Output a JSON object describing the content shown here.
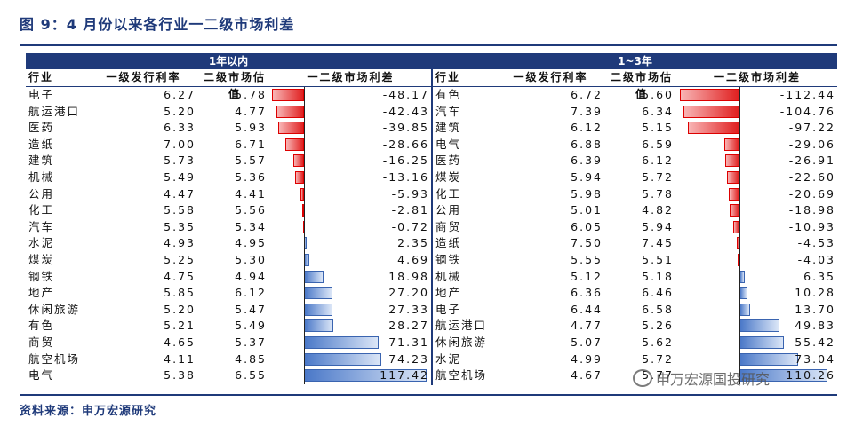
{
  "title": "图 9：4 月份以来各行业一二级市场利差",
  "source": "资料来源：申万宏源研究",
  "watermark": "申万宏源国投研究",
  "columns": {
    "industry": "行业",
    "issue_rate": "一级发行利率",
    "valuation": "二级市场估值",
    "spread": "一二级市场利差"
  },
  "left": {
    "header": "1年以内",
    "rows": [
      {
        "industry": "电子",
        "issue": "6.27",
        "val": "5.78",
        "diff": "-48.17",
        "d": -48.17
      },
      {
        "industry": "航运港口",
        "issue": "5.20",
        "val": "4.77",
        "diff": "-42.43",
        "d": -42.43
      },
      {
        "industry": "医药",
        "issue": "6.33",
        "val": "5.93",
        "diff": "-39.85",
        "d": -39.85
      },
      {
        "industry": "造纸",
        "issue": "7.00",
        "val": "6.71",
        "diff": "-28.66",
        "d": -28.66
      },
      {
        "industry": "建筑",
        "issue": "5.73",
        "val": "5.57",
        "diff": "-16.25",
        "d": -16.25
      },
      {
        "industry": "机械",
        "issue": "5.49",
        "val": "5.36",
        "diff": "-13.16",
        "d": -13.16
      },
      {
        "industry": "公用",
        "issue": "4.47",
        "val": "4.41",
        "diff": "-5.93",
        "d": -5.93
      },
      {
        "industry": "化工",
        "issue": "5.58",
        "val": "5.56",
        "diff": "-2.81",
        "d": -2.81
      },
      {
        "industry": "汽车",
        "issue": "5.35",
        "val": "5.34",
        "diff": "-0.72",
        "d": -0.72
      },
      {
        "industry": "水泥",
        "issue": "4.93",
        "val": "4.95",
        "diff": "2.35",
        "d": 2.35
      },
      {
        "industry": "煤炭",
        "issue": "5.25",
        "val": "5.30",
        "diff": "4.69",
        "d": 4.69
      },
      {
        "industry": "钢铁",
        "issue": "4.75",
        "val": "4.94",
        "diff": "18.98",
        "d": 18.98
      },
      {
        "industry": "地产",
        "issue": "5.85",
        "val": "6.12",
        "diff": "27.20",
        "d": 27.2
      },
      {
        "industry": "休闲旅游",
        "issue": "5.20",
        "val": "5.47",
        "diff": "27.33",
        "d": 27.33
      },
      {
        "industry": "有色",
        "issue": "5.21",
        "val": "5.49",
        "diff": "28.27",
        "d": 28.27
      },
      {
        "industry": "商贸",
        "issue": "4.65",
        "val": "5.37",
        "diff": "71.31",
        "d": 71.31
      },
      {
        "industry": "航空机场",
        "issue": "4.11",
        "val": "4.85",
        "diff": "74.23",
        "d": 74.23
      },
      {
        "industry": "电气",
        "issue": "5.38",
        "val": "6.55",
        "diff": "117.42",
        "d": 117.42
      }
    ]
  },
  "right": {
    "header": "1~3年",
    "rows": [
      {
        "industry": "有色",
        "issue": "6.72",
        "val": "5.60",
        "diff": "-112.44",
        "d": -112.44
      },
      {
        "industry": "汽车",
        "issue": "7.39",
        "val": "6.34",
        "diff": "-104.76",
        "d": -104.76
      },
      {
        "industry": "建筑",
        "issue": "6.12",
        "val": "5.15",
        "diff": "-97.22",
        "d": -97.22
      },
      {
        "industry": "电气",
        "issue": "6.88",
        "val": "6.59",
        "diff": "-29.06",
        "d": -29.06
      },
      {
        "industry": "医药",
        "issue": "6.39",
        "val": "6.12",
        "diff": "-26.91",
        "d": -26.91
      },
      {
        "industry": "煤炭",
        "issue": "5.94",
        "val": "5.72",
        "diff": "-22.60",
        "d": -22.6
      },
      {
        "industry": "化工",
        "issue": "5.98",
        "val": "5.78",
        "diff": "-20.69",
        "d": -20.69
      },
      {
        "industry": "公用",
        "issue": "5.01",
        "val": "4.82",
        "diff": "-18.98",
        "d": -18.98
      },
      {
        "industry": "商贸",
        "issue": "6.05",
        "val": "5.94",
        "diff": "-10.93",
        "d": -10.93
      },
      {
        "industry": "造纸",
        "issue": "7.50",
        "val": "7.45",
        "diff": "-4.53",
        "d": -4.53
      },
      {
        "industry": "钢铁",
        "issue": "5.55",
        "val": "5.51",
        "diff": "-4.03",
        "d": -4.03
      },
      {
        "industry": "机械",
        "issue": "5.12",
        "val": "5.18",
        "diff": "6.35",
        "d": 6.35
      },
      {
        "industry": "地产",
        "issue": "6.36",
        "val": "6.46",
        "diff": "10.28",
        "d": 10.28
      },
      {
        "industry": "电子",
        "issue": "6.44",
        "val": "6.58",
        "diff": "13.70",
        "d": 13.7
      },
      {
        "industry": "航运港口",
        "issue": "4.77",
        "val": "5.26",
        "diff": "49.83",
        "d": 49.83
      },
      {
        "industry": "休闲旅游",
        "issue": "5.07",
        "val": "5.62",
        "diff": "55.42",
        "d": 55.42
      },
      {
        "industry": "水泥",
        "issue": "4.99",
        "val": "5.72",
        "diff": "73.04",
        "d": 73.04
      },
      {
        "industry": "航空机场",
        "issue": "4.67",
        "val": "5.77",
        "diff": "110.26",
        "d": 110.26
      }
    ]
  }
}
